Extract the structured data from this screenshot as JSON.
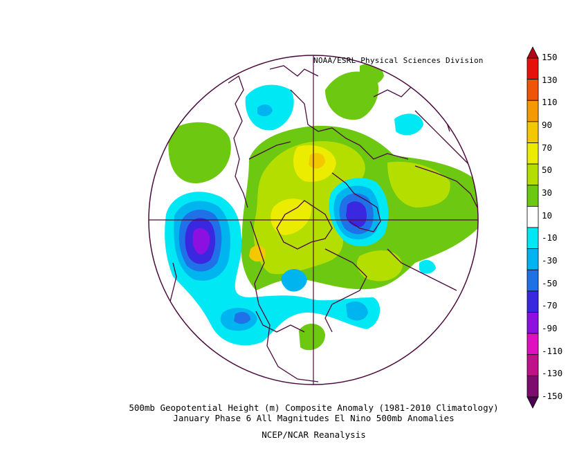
{
  "credit": "NOAA/ESRL Physical Sciences Division",
  "caption_line1": "500mb Geopotential Height (m) Composite Anomaly (1981-2010 Climatology)",
  "caption_line2": "January Phase 6 All Magnitudes El Nino 500mb Anomalies",
  "caption_line3": "NCEP/NCAR Reanalysis",
  "colorbar": {
    "labels": [
      "150",
      "130",
      "110",
      "90",
      "70",
      "50",
      "30",
      "10",
      "-10",
      "-30",
      "-50",
      "-70",
      "-90",
      "-110",
      "-130",
      "-150"
    ],
    "colors": [
      "#b40018",
      "#e8100c",
      "#f05408",
      "#f49a00",
      "#f4c800",
      "#ecec00",
      "#b4de00",
      "#6cc810",
      "#ffffff",
      "#00e8f4",
      "#00b4f0",
      "#2070e8",
      "#3a28e0",
      "#8c10e0",
      "#e010c0",
      "#c0108a",
      "#7c0c6e",
      "#4c0050"
    ]
  },
  "colors": {
    "coastline": "#4a0a3c",
    "gridline": "#4a0a3c",
    "pos_light": "#6cc810",
    "pos_mid": "#b4de00",
    "pos_high": "#ecec00",
    "pos_peak": "#f4c800",
    "neg_light": "#00e8f4",
    "neg_mid": "#00b4f0",
    "neg_strong": "#2070e8",
    "neg_deep": "#3a28e0",
    "neg_extreme": "#8c10e0"
  },
  "legend_title": "",
  "map_title": ""
}
